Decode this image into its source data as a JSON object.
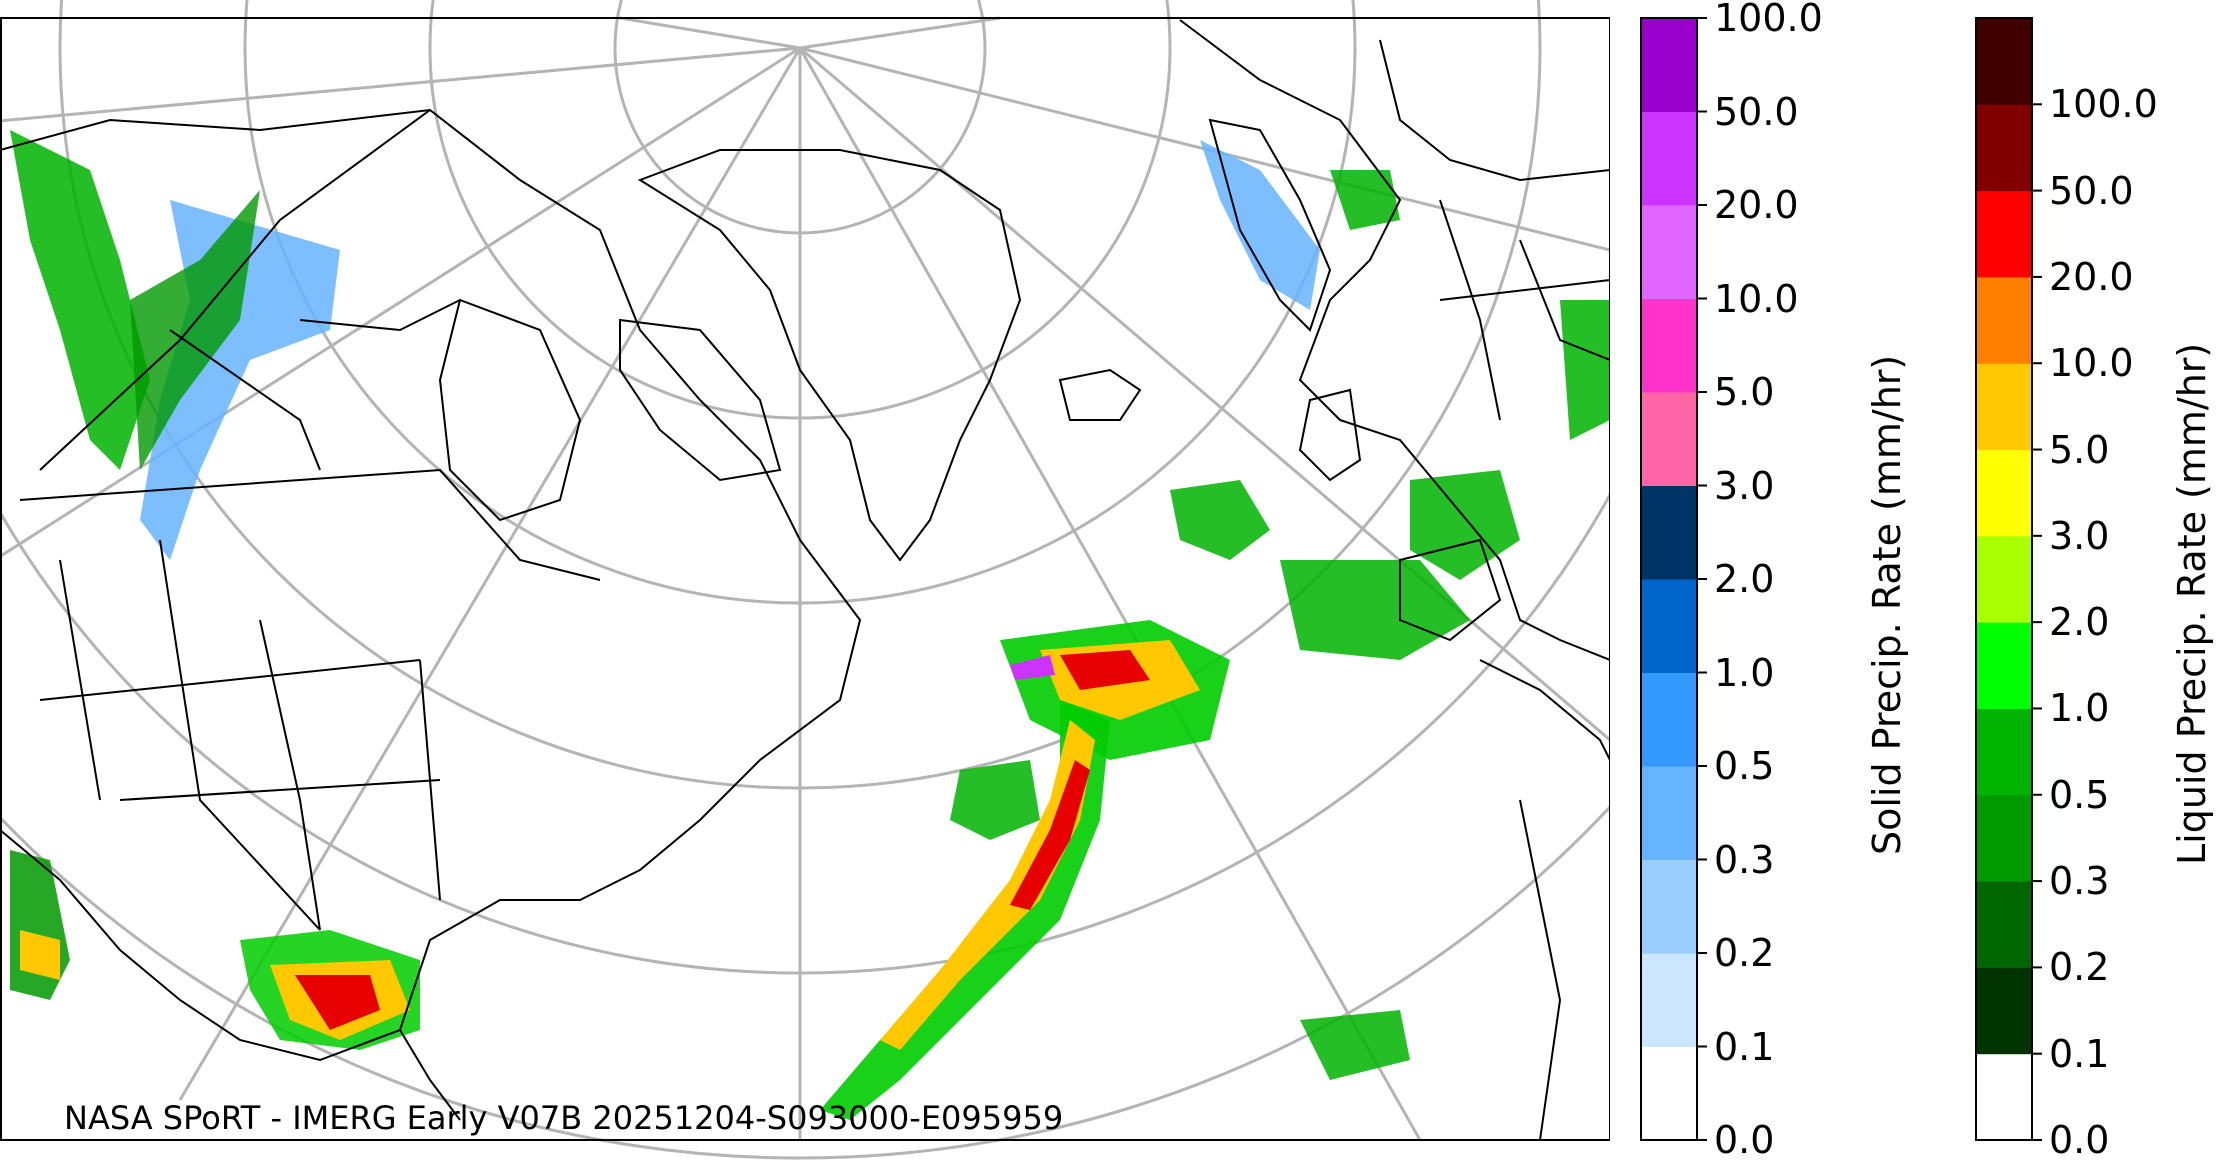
{
  "map": {
    "credit": "NASA SPoRT - IMERG Early V07B 20251204-S093000-E095959",
    "colors": {
      "coast": "#000000",
      "graticule": "#b4b4b4",
      "frame": "#000000"
    }
  },
  "colorbars": [
    {
      "id": "solid",
      "label": "Solid Precip. Rate (mm/hr)",
      "ticks": [
        "0.0",
        "0.1",
        "0.2",
        "0.3",
        "0.5",
        "1.0",
        "2.0",
        "3.0",
        "5.0",
        "10.0",
        "20.0",
        "50.0",
        "100.0"
      ],
      "colors": [
        "#ffffff",
        "#cce6ff",
        "#99ccff",
        "#66b3ff",
        "#3399ff",
        "#0066cc",
        "#003366",
        "#ff66a8",
        "#ff33cc",
        "#e066ff",
        "#cc33ff",
        "#9900cc"
      ]
    },
    {
      "id": "liquid",
      "label": "Liquid Precip. Rate (mm/hr)",
      "ticks": [
        "0.0",
        "0.1",
        "0.2",
        "0.3",
        "0.5",
        "1.0",
        "2.0",
        "3.0",
        "5.0",
        "10.0",
        "20.0",
        "50.0",
        "100.0"
      ],
      "colors": [
        "#ffffff",
        "#003300",
        "#006600",
        "#009900",
        "#00b300",
        "#00ff00",
        "#aaff00",
        "#ffff00",
        "#ffc800",
        "#ff8000",
        "#ff0000",
        "#800000",
        "#400000"
      ]
    }
  ]
}
